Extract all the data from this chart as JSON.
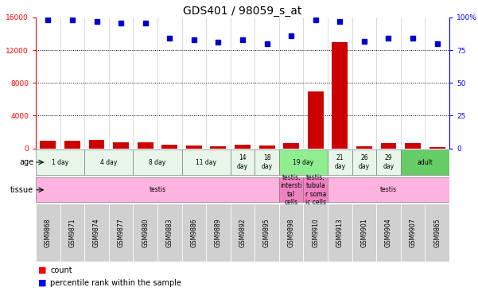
{
  "title": "GDS401 / 98059_s_at",
  "samples": [
    "GSM9868",
    "GSM9871",
    "GSM9874",
    "GSM9877",
    "GSM9880",
    "GSM9883",
    "GSM9886",
    "GSM9889",
    "GSM9892",
    "GSM9895",
    "GSM9898",
    "GSM9910",
    "GSM9913",
    "GSM9901",
    "GSM9904",
    "GSM9907",
    "GSM9865"
  ],
  "counts": [
    900,
    950,
    1050,
    700,
    750,
    450,
    400,
    300,
    450,
    350,
    600,
    7000,
    13000,
    300,
    600,
    650,
    200
  ],
  "percentiles": [
    98,
    98,
    97,
    96,
    96,
    84,
    83,
    81,
    83,
    80,
    86,
    98,
    97,
    82,
    84,
    84,
    80
  ],
  "ylim_left": [
    0,
    16000
  ],
  "ylim_right": [
    0,
    100
  ],
  "yticks_left": [
    0,
    4000,
    8000,
    12000,
    16000
  ],
  "yticks_right": [
    0,
    25,
    50,
    75,
    100
  ],
  "bar_color": "#cc0000",
  "dot_color": "#0000cc",
  "age_groups": [
    {
      "label": "1 day",
      "start": 0,
      "end": 2,
      "color": "#e8f5e9"
    },
    {
      "label": "4 day",
      "start": 2,
      "end": 4,
      "color": "#e8f5e9"
    },
    {
      "label": "8 day",
      "start": 4,
      "end": 6,
      "color": "#e8f5e9"
    },
    {
      "label": "11 day",
      "start": 6,
      "end": 8,
      "color": "#e8f5e9"
    },
    {
      "label": "14\nday",
      "start": 8,
      "end": 9,
      "color": "#e8f5e9"
    },
    {
      "label": "18\nday",
      "start": 9,
      "end": 10,
      "color": "#e8f5e9"
    },
    {
      "label": "19 day",
      "start": 10,
      "end": 12,
      "color": "#90ee90"
    },
    {
      "label": "21\nday",
      "start": 12,
      "end": 13,
      "color": "#e8f5e9"
    },
    {
      "label": "26\nday",
      "start": 13,
      "end": 14,
      "color": "#e8f5e9"
    },
    {
      "label": "29\nday",
      "start": 14,
      "end": 15,
      "color": "#e8f5e9"
    },
    {
      "label": "adult",
      "start": 15,
      "end": 17,
      "color": "#66cc66"
    }
  ],
  "tissue_groups": [
    {
      "label": "testis",
      "start": 0,
      "end": 10,
      "color": "#ffb3de"
    },
    {
      "label": "testis,\nintersti\ntal\ncells",
      "start": 10,
      "end": 11,
      "color": "#ee82c0"
    },
    {
      "label": "testis,\ntubula\nr soma\nic cells",
      "start": 11,
      "end": 12,
      "color": "#ee82c0"
    },
    {
      "label": "testis",
      "start": 12,
      "end": 17,
      "color": "#ffb3de"
    }
  ],
  "title_fontsize": 10,
  "tick_fontsize": 6.5,
  "label_fontsize": 7,
  "sample_box_color": "#d0d0d0",
  "bg_color": "#ffffff"
}
